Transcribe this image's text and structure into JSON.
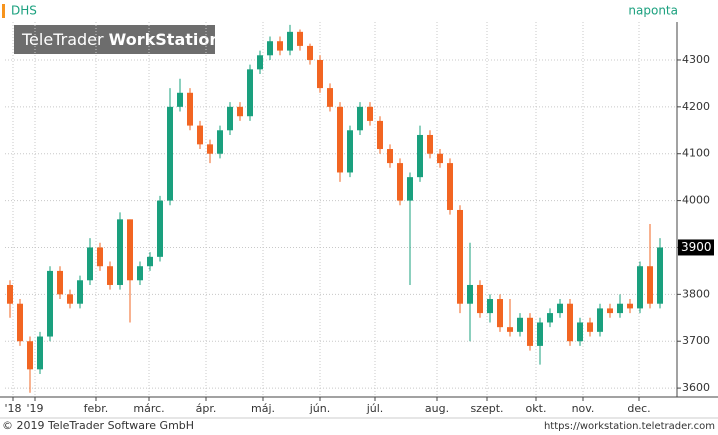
{
  "chart_data": {
    "type": "candlestick",
    "symbol": "DHS",
    "interval": "naponta",
    "logo": {
      "light": "TeleTrader",
      "bold": "WorkStation"
    },
    "footer_left": "© 2019 TeleTrader Software GmbH",
    "footer_right": "https://workstation.teletrader.com",
    "last_price": 3900,
    "up_color": "#1aa07e",
    "down_color": "#f26522",
    "grid": true,
    "x": [
      0,
      1,
      2,
      3,
      4,
      5,
      6,
      7,
      8,
      9,
      10,
      11,
      12,
      13,
      14,
      15,
      16,
      17,
      18,
      19,
      20,
      21,
      22,
      23,
      24,
      25,
      26,
      27,
      28,
      29,
      30,
      31,
      32,
      33,
      34,
      35,
      36,
      37,
      38,
      39,
      40,
      41,
      42,
      43,
      44,
      45,
      46,
      47,
      48,
      49,
      50,
      51,
      52,
      53,
      54,
      55,
      56,
      57,
      58,
      59,
      60,
      61,
      62,
      63,
      64,
      65
    ],
    "open": [
      3820,
      3780,
      3700,
      3640,
      3710,
      3850,
      3800,
      3780,
      3830,
      3900,
      3860,
      3820,
      3960,
      3830,
      3860,
      3880,
      4000,
      4200,
      4230,
      4160,
      4120,
      4100,
      4150,
      4200,
      4180,
      4280,
      4310,
      4340,
      4320,
      4360,
      4330,
      4300,
      4240,
      4200,
      4060,
      4150,
      4200,
      4170,
      4110,
      4080,
      4000,
      4050,
      4140,
      4100,
      4080,
      3980,
      3780,
      3820,
      3760,
      3790,
      3730,
      3720,
      3750,
      3690,
      3740,
      3760,
      3780,
      3700,
      3740,
      3720,
      3770,
      3760,
      3780,
      3770,
      3860,
      3780
    ],
    "high": [
      3830,
      3790,
      3710,
      3720,
      3860,
      3860,
      3810,
      3840,
      3920,
      3910,
      3870,
      3975,
      3960,
      3870,
      3890,
      4010,
      4240,
      4260,
      4240,
      4170,
      4130,
      4160,
      4210,
      4210,
      4290,
      4320,
      4350,
      4350,
      4375,
      4365,
      4335,
      4310,
      4250,
      4210,
      4160,
      4210,
      4210,
      4180,
      4120,
      4090,
      4060,
      4160,
      4150,
      4110,
      4090,
      3990,
      3910,
      3830,
      3800,
      3800,
      3790,
      3760,
      3760,
      3750,
      3770,
      3790,
      3790,
      3750,
      3750,
      3780,
      3780,
      3800,
      3790,
      3870,
      3950,
      3920
    ],
    "low": [
      3750,
      3690,
      3590,
      3630,
      3700,
      3790,
      3770,
      3770,
      3820,
      3850,
      3810,
      3810,
      3740,
      3820,
      3850,
      3870,
      3990,
      4190,
      4150,
      4110,
      4080,
      4090,
      4140,
      4170,
      4170,
      4270,
      4300,
      4310,
      4310,
      4320,
      4290,
      4230,
      4190,
      4040,
      4050,
      4140,
      4160,
      4100,
      4070,
      3990,
      3820,
      4040,
      4090,
      4070,
      3970,
      3760,
      3700,
      3750,
      3740,
      3720,
      3710,
      3710,
      3680,
      3650,
      3730,
      3750,
      3690,
      3690,
      3710,
      3710,
      3750,
      3750,
      3760,
      3760,
      3770,
      3770
    ],
    "close": [
      3780,
      3700,
      3640,
      3710,
      3850,
      3800,
      3780,
      3830,
      3900,
      3860,
      3820,
      3960,
      3830,
      3860,
      3880,
      4000,
      4200,
      4230,
      4160,
      4120,
      4100,
      4150,
      4200,
      4180,
      4280,
      4310,
      4340,
      4320,
      4360,
      4330,
      4300,
      4240,
      4200,
      4060,
      4150,
      4200,
      4170,
      4110,
      4080,
      4000,
      4050,
      4140,
      4100,
      4080,
      3980,
      3780,
      3820,
      3760,
      3790,
      3730,
      3720,
      3750,
      3690,
      3740,
      3760,
      3780,
      3700,
      3740,
      3720,
      3770,
      3760,
      3780,
      3770,
      3860,
      3780,
      3900
    ],
    "xlim": [
      -0.5,
      66.7
    ],
    "xticks": [
      {
        "value": 0.3,
        "label": "'18"
      },
      {
        "value": 2.5,
        "label": "'19"
      },
      {
        "value": 8.6,
        "label": "febr."
      },
      {
        "value": 13.9,
        "label": "márc."
      },
      {
        "value": 19.6,
        "label": "ápr."
      },
      {
        "value": 25.3,
        "label": "máj."
      },
      {
        "value": 31,
        "label": "jún."
      },
      {
        "value": 36.5,
        "label": "júl."
      },
      {
        "value": 42.7,
        "label": "aug."
      },
      {
        "value": 47.7,
        "label": "szept."
      },
      {
        "value": 52.6,
        "label": "okt."
      },
      {
        "value": 57.3,
        "label": "nov."
      },
      {
        "value": 62.9,
        "label": "dec."
      }
    ],
    "ylim": [
      3581,
      4381
    ],
    "yticks": [
      3600,
      3700,
      3800,
      3900,
      4000,
      4100,
      4200,
      4300
    ]
  }
}
